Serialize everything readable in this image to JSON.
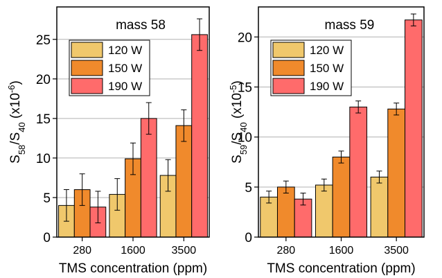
{
  "chart_data": [
    {
      "type": "bar",
      "annotation": "mass 58",
      "ylabel": [
        {
          "text": "S"
        },
        {
          "text": "58",
          "style": "sub"
        },
        {
          "text": "/S"
        },
        {
          "text": "40",
          "style": "sub"
        },
        {
          "text": " (x10"
        },
        {
          "text": "-6",
          "style": "sup"
        },
        {
          "text": ")"
        }
      ],
      "xlabel": "TMS concentration (ppm)",
      "categories": [
        "280",
        "1600",
        "3500"
      ],
      "series": [
        {
          "name": "120 W",
          "color": "#f0c86c",
          "values": [
            4,
            5.4,
            7.8
          ],
          "errors": [
            2,
            2,
            2
          ]
        },
        {
          "name": "150 W",
          "color": "#f08a2c",
          "values": [
            6,
            9.9,
            14.1
          ],
          "errors": [
            2,
            2,
            2
          ]
        },
        {
          "name": "190 W",
          "color": "#ff6b6b",
          "values": [
            3.8,
            15,
            25.6
          ],
          "errors": [
            2,
            2,
            2
          ]
        }
      ],
      "ylim": [
        0,
        29.1
      ],
      "yticks": [
        0,
        5,
        10,
        15,
        20,
        25
      ],
      "grid": true,
      "legend": "upper-left"
    },
    {
      "type": "bar",
      "annotation": "mass 59",
      "ylabel": [
        {
          "text": "S"
        },
        {
          "text": "59",
          "style": "sub"
        },
        {
          "text": "/S"
        },
        {
          "text": "40",
          "style": "sub"
        },
        {
          "text": " (x10"
        },
        {
          "text": "-5",
          "style": "sup"
        },
        {
          "text": ")"
        }
      ],
      "xlabel": "TMS concentration (ppm)",
      "categories": [
        "280",
        "1600",
        "3500"
      ],
      "series": [
        {
          "name": "120 W",
          "color": "#f0c86c",
          "values": [
            4,
            5.2,
            6
          ],
          "errors": [
            0.6,
            0.6,
            0.6
          ]
        },
        {
          "name": "150 W",
          "color": "#f08a2c",
          "values": [
            5,
            8,
            12.8
          ],
          "errors": [
            0.6,
            0.6,
            0.6
          ]
        },
        {
          "name": "190 W",
          "color": "#ff6b6b",
          "values": [
            3.8,
            13,
            21.7
          ],
          "errors": [
            0.6,
            0.6,
            0.6
          ]
        }
      ],
      "ylim": [
        0,
        23
      ],
      "yticks": [
        0,
        5,
        10,
        15,
        20
      ],
      "grid": true,
      "legend": "upper-left"
    }
  ]
}
